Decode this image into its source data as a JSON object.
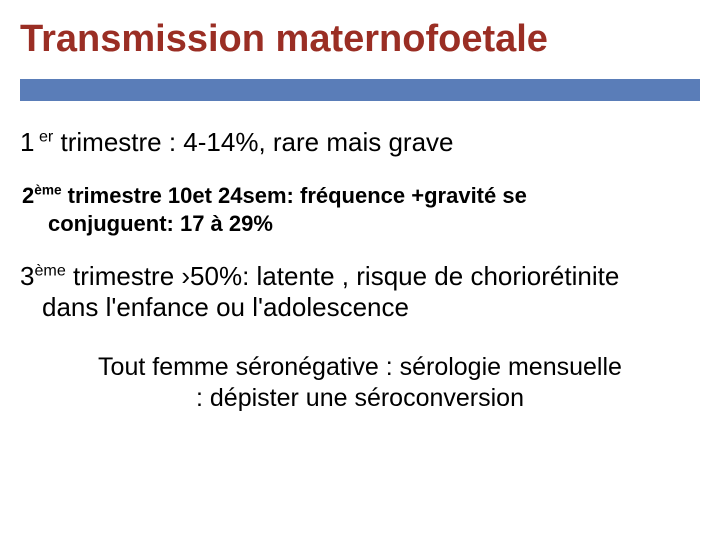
{
  "title": {
    "text": "Transmission maternofoetale",
    "color": "#9a2e24",
    "fontsize": 38
  },
  "bar": {
    "color": "#5a7db8",
    "height": 22
  },
  "body": {
    "color": "#000000"
  },
  "p1": {
    "prefix": "1",
    "sup": " er",
    "rest": " trimestre : 4-14%, rare mais grave",
    "fontsize": 26
  },
  "p2": {
    "prefix": "2",
    "sup": "ème",
    "line1_rest": " trimestre  10et 24sem: fréquence +gravité se",
    "line2": "conjuguent: 17 à 29%",
    "fontsize": 22,
    "weight": "bold"
  },
  "p3": {
    "prefix": "3",
    "sup": "ème",
    "line1_rest": " trimestre ›50%: latente , risque de choriorétinite",
    "line2": "dans l'enfance ou l'adolescence",
    "fontsize": 26
  },
  "p4": {
    "line1": "Tout femme séronégative : sérologie mensuelle",
    "line2": ": dépister une séroconversion",
    "fontsize": 25
  },
  "background_color": "#ffffff"
}
